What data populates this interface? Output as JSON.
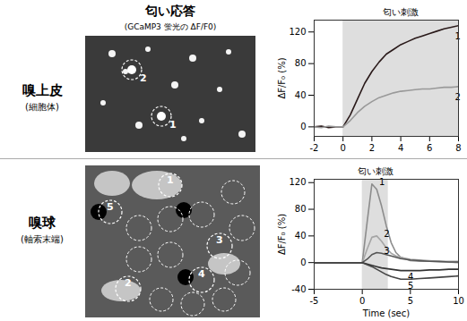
{
  "figure": {
    "title": "匂い応答",
    "subtitle": "(GCaMP3 蛍光の ΔF/F0)",
    "rows": [
      {
        "label": "嗅上皮",
        "sublabel": "(細胞体)",
        "roi_labels": [
          "1",
          "2"
        ]
      },
      {
        "label": "嗅球",
        "sublabel": "(軸索末端)",
        "roi_labels": [
          "1",
          "2",
          "3",
          "4",
          "5"
        ]
      }
    ]
  },
  "chart_data": [
    {
      "type": "line",
      "ylabel": "ΔF/F₀ (%)",
      "stimulus": [
        0,
        8
      ],
      "stimulus_label": "匂い刺激",
      "x": [
        -2,
        -1.5,
        -1,
        -0.5,
        0,
        0.5,
        1,
        1.5,
        2,
        2.5,
        3,
        3.5,
        4,
        4.5,
        5,
        5.5,
        6,
        6.5,
        7,
        7.5,
        8
      ],
      "series": [
        {
          "name": "1",
          "color": "#2a1a1a",
          "values": [
            0,
            1,
            -1,
            0,
            0,
            15,
            35,
            55,
            70,
            82,
            92,
            98,
            104,
            108,
            112,
            115,
            118,
            121,
            124,
            126,
            128
          ]
        },
        {
          "name": "2",
          "color": "#999999",
          "values": [
            0,
            -1,
            1,
            0,
            0,
            8,
            18,
            26,
            32,
            37,
            40,
            43,
            45,
            46,
            47,
            48,
            48,
            49,
            50,
            50,
            51
          ]
        }
      ],
      "xlim": [
        -2,
        8
      ],
      "xticks": [
        -2,
        0,
        2,
        4,
        6,
        8
      ],
      "ylim": [
        -12,
        135
      ],
      "yticks": [
        0,
        40,
        80,
        120
      ]
    },
    {
      "type": "line",
      "xlabel": "Time (sec)",
      "ylabel": "ΔF/F₀ (%)",
      "stimulus": [
        0,
        2.7
      ],
      "stimulus_label": "匂い刺激",
      "x": [
        -5,
        -4,
        -3,
        -2,
        -1,
        0,
        0.5,
        1,
        1.5,
        2,
        2.5,
        3,
        3.5,
        4,
        5,
        6,
        7,
        8,
        9,
        10
      ],
      "series": [
        {
          "name": "1",
          "color": "#8c8c8c",
          "values": [
            0,
            0,
            0,
            0,
            0,
            0,
            60,
            118,
            110,
            85,
            55,
            30,
            15,
            8,
            3,
            2,
            2,
            1,
            1,
            0
          ]
        },
        {
          "name": "2",
          "color": "#a6a6a6",
          "values": [
            0,
            0,
            0,
            0,
            0,
            0,
            20,
            38,
            40,
            32,
            22,
            14,
            10,
            8,
            5,
            4,
            3,
            2,
            2,
            2
          ]
        },
        {
          "name": "3",
          "color": "#555555",
          "values": [
            0,
            0,
            0,
            0,
            0,
            0,
            5,
            12,
            15,
            14,
            12,
            10,
            8,
            6,
            4,
            3,
            2,
            2,
            1,
            1
          ]
        },
        {
          "name": "4",
          "color": "#333333",
          "values": [
            0,
            0,
            0,
            0,
            0,
            0,
            -2,
            -4,
            -6,
            -8,
            -9,
            -10,
            -11,
            -12,
            -12,
            -12,
            -11,
            -11,
            -10,
            -10
          ]
        },
        {
          "name": "5",
          "color": "#444444",
          "values": [
            0,
            0,
            0,
            0,
            0,
            0,
            -3,
            -6,
            -10,
            -14,
            -18,
            -21,
            -23,
            -25,
            -25,
            -24,
            -23,
            -22,
            -21,
            -20
          ]
        }
      ],
      "xlim": [
        -5,
        10
      ],
      "xticks": [
        -5,
        0,
        5,
        10
      ],
      "ylim": [
        -40,
        125
      ],
      "yticks": [
        -40,
        0,
        40,
        80,
        120
      ]
    }
  ]
}
